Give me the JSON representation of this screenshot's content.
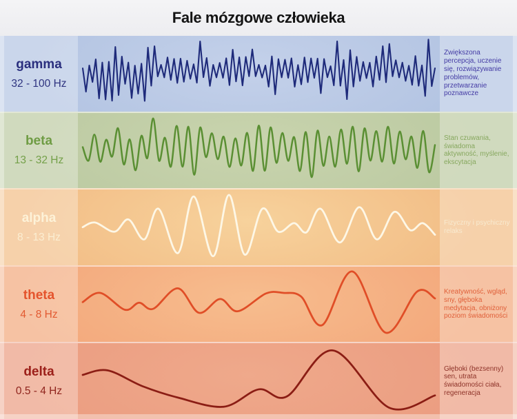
{
  "title": "Fale mózgowe człowieka",
  "bands": [
    {
      "name": "gamma",
      "freq": "32 - 100 Hz",
      "description": "Zwiększona percepcja, uczenie się, rozwiązywanie problemów, przetwarzanie poznawcze",
      "colors": {
        "base": "#b3c4e2",
        "glow": "#c4d1ea",
        "stroke": "#1e2a7a",
        "name": "#2a2f7e",
        "freq_text": "#2e337f",
        "desc_text": "#443ba4"
      },
      "wave": {
        "kind": "jagged",
        "seed": 13,
        "segments": 108,
        "mid": 52,
        "min_amp": 7,
        "amp_var": 16,
        "spike_chance": 0.17,
        "spike_min": 30,
        "spike_var": 18,
        "stroke_width": 2.1
      }
    },
    {
      "name": "beta",
      "freq": "13 - 32 Hz",
      "description": "Stan czuwania, świadoma aktywność, myślenie, ekscytacja",
      "colors": {
        "base": "#bccaa2",
        "glow": "#c9d4ae",
        "stroke": "#5a8f33",
        "name": "#6f9c44",
        "freq_text": "#74a049",
        "desc_text": "#87a85f"
      },
      "wave": {
        "kind": "smooth-osc",
        "seed": 29,
        "segments": 60,
        "mid": 52,
        "min_amp": 12,
        "amp_var": 24,
        "spike_chance": 0.12,
        "spike_min": 38,
        "spike_var": 10,
        "stroke_width": 2.5
      }
    },
    {
      "name": "alpha",
      "freq": "8 - 13 Hz",
      "description": "Fizyczny i psychiczny relaks",
      "colors": {
        "base": "#f2bd86",
        "glow": "#f7d29c",
        "stroke": "#fdf7e6",
        "name": "#fdf2d8",
        "freq_text": "#fbeed2",
        "desc_text": "#f8ead0"
      },
      "wave": {
        "kind": "control-points",
        "mid": 53,
        "scale": 45,
        "stroke_width": 2.8,
        "points": [
          [
            0,
            -0.05
          ],
          [
            0.035,
            0.1
          ],
          [
            0.09,
            -0.2
          ],
          [
            0.13,
            0.2
          ],
          [
            0.175,
            -0.45
          ],
          [
            0.215,
            0.55
          ],
          [
            0.27,
            -0.9
          ],
          [
            0.315,
            0.95
          ],
          [
            0.37,
            -1
          ],
          [
            0.415,
            1
          ],
          [
            0.46,
            -0.95
          ],
          [
            0.51,
            0.55
          ],
          [
            0.555,
            -0.2
          ],
          [
            0.6,
            0.08
          ],
          [
            0.635,
            -0.22
          ],
          [
            0.675,
            0.55
          ],
          [
            0.73,
            -0.55
          ],
          [
            0.785,
            0.6
          ],
          [
            0.835,
            -0.45
          ],
          [
            0.885,
            0.45
          ],
          [
            0.93,
            -0.15
          ],
          [
            0.965,
            0.08
          ],
          [
            1,
            -0.3
          ]
        ]
      }
    },
    {
      "name": "theta",
      "freq": "4 - 8 Hz",
      "description": "Kreatywność, wgląd, sny, głęboka medytacja, obniżony poziom świadomości",
      "colors": {
        "base": "#f3a87c",
        "glow": "#f7bd8e",
        "stroke": "#e04e27",
        "name": "#e4532c",
        "freq_text": "#e25a31",
        "desc_text": "#e0603a"
      },
      "wave": {
        "kind": "control-points",
        "mid": 52,
        "scale": 45,
        "stroke_width": 2.8,
        "points": [
          [
            0,
            0
          ],
          [
            0.05,
            0.3
          ],
          [
            0.12,
            -0.25
          ],
          [
            0.16,
            -0.02
          ],
          [
            0.2,
            -0.22
          ],
          [
            0.27,
            0.45
          ],
          [
            0.33,
            -0.35
          ],
          [
            0.39,
            0.1
          ],
          [
            0.44,
            -0.3
          ],
          [
            0.52,
            0.28
          ],
          [
            0.57,
            0.3
          ],
          [
            0.62,
            0.18
          ],
          [
            0.68,
            -0.75
          ],
          [
            0.765,
            1
          ],
          [
            0.86,
            -1
          ],
          [
            0.95,
            0.35
          ],
          [
            1,
            0.12
          ]
        ]
      }
    },
    {
      "name": "delta",
      "freq": "0.5 - 4 Hz",
      "description": "Głęboki (bezsenny) sen, utrata świadomości ciała, regeneracja",
      "colors": {
        "base": "#eb9d81",
        "glow": "#efa98b",
        "stroke": "#8b1d14",
        "name": "#9c201a",
        "freq_text": "#8f241d",
        "desc_text": "#8e3329"
      },
      "wave": {
        "kind": "control-points",
        "mid": 52,
        "scale": 45,
        "stroke_width": 2.8,
        "points": [
          [
            0,
            0.12
          ],
          [
            0.07,
            0.27
          ],
          [
            0.17,
            -0.25
          ],
          [
            0.27,
            -0.62
          ],
          [
            0.4,
            -0.92
          ],
          [
            0.5,
            -0.35
          ],
          [
            0.58,
            -0.58
          ],
          [
            0.71,
            0.92
          ],
          [
            0.87,
            -0.95
          ],
          [
            1,
            -0.55
          ]
        ]
      }
    }
  ]
}
